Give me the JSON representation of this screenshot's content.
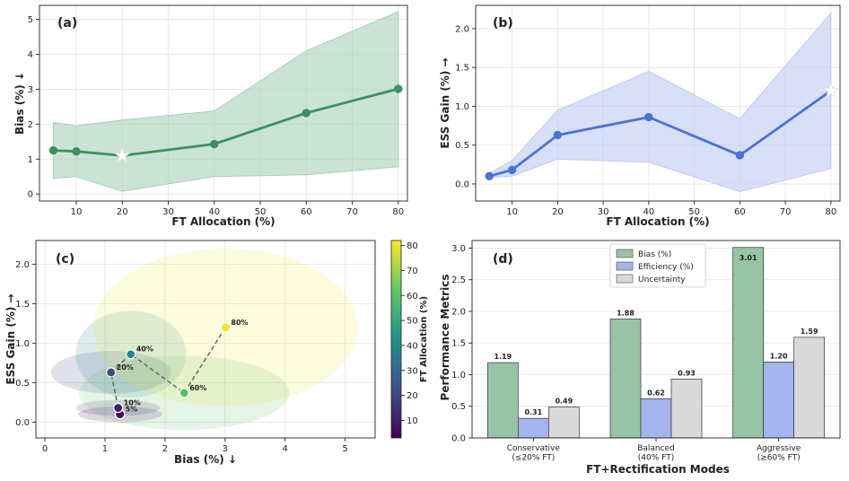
{
  "chart_data": [
    {
      "id": "a",
      "type": "line",
      "panel_label": "(a)",
      "xlabel": "FT Allocation (%)",
      "ylabel": "Bias (%) ↓",
      "xlim": [
        2,
        82
      ],
      "ylim": [
        -0.2,
        5.4
      ],
      "xticks": [
        10,
        20,
        30,
        40,
        50,
        60,
        70,
        80
      ],
      "yticks": [
        0,
        1,
        2,
        3,
        4,
        5
      ],
      "color": "#3a9160",
      "band_color": "#a9d1b7",
      "x": [
        5,
        10,
        20,
        40,
        60,
        80
      ],
      "y": [
        1.25,
        1.22,
        1.1,
        1.43,
        2.32,
        3.01
      ],
      "band_lower": [
        0.45,
        0.5,
        0.08,
        0.5,
        0.55,
        0.78
      ],
      "band_upper": [
        2.05,
        1.95,
        2.12,
        2.38,
        4.1,
        5.22
      ],
      "best": {
        "x": 20,
        "y": 1.1
      }
    },
    {
      "id": "b",
      "type": "line",
      "panel_label": "(b)",
      "xlabel": "FT Allocation (%)",
      "ylabel": "ESS Gain (%) →",
      "xlim": [
        2,
        82
      ],
      "ylim": [
        -0.22,
        2.3
      ],
      "xticks": [
        10,
        20,
        30,
        40,
        50,
        60,
        70,
        80
      ],
      "yticks": [
        0.0,
        0.5,
        1.0,
        1.5,
        2.0
      ],
      "color": "#4a72d8",
      "band_color": "#bccbf2",
      "x": [
        5,
        10,
        20,
        40,
        60,
        80
      ],
      "y": [
        0.1,
        0.18,
        0.63,
        0.86,
        0.37,
        1.2
      ],
      "band_lower": [
        0.08,
        0.1,
        0.32,
        0.28,
        -0.1,
        0.2
      ],
      "band_upper": [
        0.14,
        0.3,
        0.95,
        1.45,
        0.84,
        2.2
      ],
      "best": {
        "x": 80,
        "y": 1.2
      }
    },
    {
      "id": "c",
      "type": "scatter",
      "panel_label": "(c)",
      "xlabel": "Bias (%) ↓",
      "ylabel": "ESS Gain (%) →",
      "colorbar_label": "FT Allocation (%)",
      "colorbar_range": [
        3,
        82
      ],
      "colorbar_ticks": [
        10,
        20,
        30,
        40,
        50,
        60,
        70,
        80
      ],
      "xlim": [
        -0.15,
        5.5
      ],
      "ylim": [
        -0.2,
        2.3
      ],
      "xticks": [
        0,
        1,
        2,
        3,
        4,
        5
      ],
      "yticks": [
        0.0,
        0.5,
        1.0,
        1.5,
        2.0
      ],
      "points": [
        {
          "label": "5%",
          "ft": 5,
          "bias": 1.25,
          "ess": 0.1,
          "sd_bias": 0.7,
          "sd_ess": 0.1
        },
        {
          "label": "10%",
          "ft": 10,
          "bias": 1.22,
          "ess": 0.18,
          "sd_bias": 0.7,
          "sd_ess": 0.1
        },
        {
          "label": "20%",
          "ft": 20,
          "bias": 1.1,
          "ess": 0.63,
          "sd_bias": 1.0,
          "sd_ess": 0.27
        },
        {
          "label": "40%",
          "ft": 40,
          "bias": 1.43,
          "ess": 0.86,
          "sd_bias": 0.92,
          "sd_ess": 0.55
        },
        {
          "label": "60%",
          "ft": 60,
          "bias": 2.32,
          "ess": 0.37,
          "sd_bias": 1.75,
          "sd_ess": 0.47
        },
        {
          "label": "80%",
          "ft": 80,
          "bias": 3.01,
          "ess": 1.2,
          "sd_bias": 2.2,
          "sd_ess": 1.0
        }
      ]
    },
    {
      "id": "d",
      "type": "bar",
      "panel_label": "(d)",
      "xlabel": "FT+Rectification Modes",
      "ylabel": "Performance Metrics",
      "ylim": [
        0,
        3.12
      ],
      "yticks": [
        0.0,
        0.5,
        1.0,
        1.5,
        2.0,
        2.5,
        3.0
      ],
      "categories": [
        [
          "Conservative",
          "(≤20% FT)"
        ],
        [
          "Balanced",
          "(40% FT)"
        ],
        [
          "Aggressive",
          "(≥60% FT)"
        ]
      ],
      "series": [
        {
          "name": "Bias (%)",
          "values": [
            1.19,
            1.88,
            3.01
          ],
          "labels": [
            "1.19",
            "1.88",
            "3.01"
          ],
          "color": "#98c4a6"
        },
        {
          "name": "Efficiency (%)",
          "values": [
            0.31,
            0.62,
            1.2
          ],
          "labels": [
            "0.31",
            "0.62",
            "1.20"
          ],
          "color": "#a4b4ee"
        },
        {
          "name": "Uncertainty",
          "values": [
            0.49,
            0.93,
            1.59
          ],
          "labels": [
            "0.49",
            "0.93",
            "1.59"
          ],
          "color": "#d9d9d9"
        }
      ],
      "legend": "top-center"
    }
  ]
}
